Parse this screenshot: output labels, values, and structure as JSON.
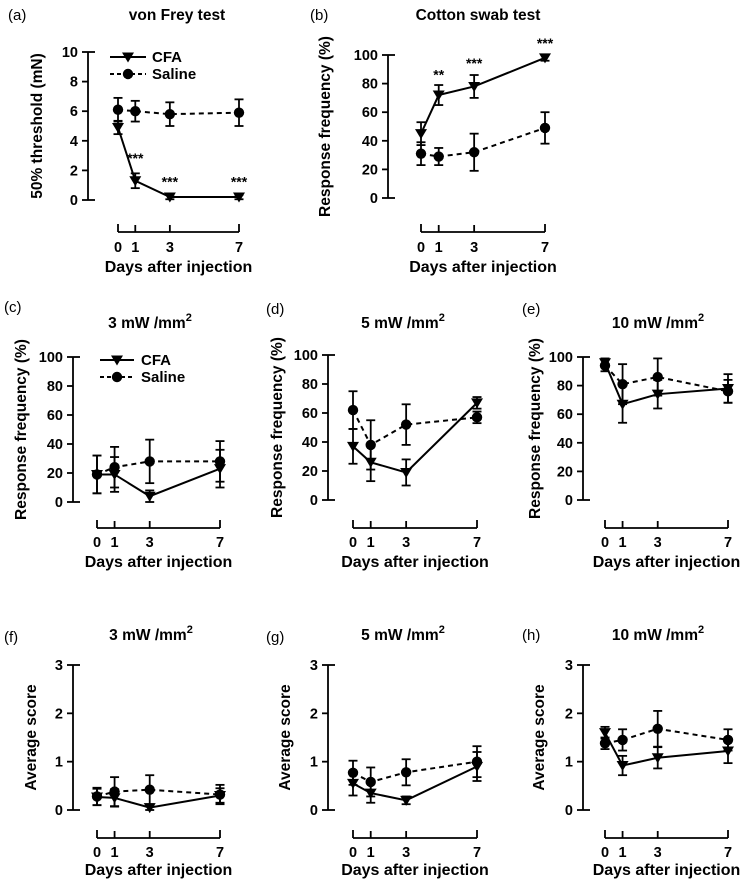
{
  "figure": {
    "background": "#ffffff",
    "foreground": "#000000",
    "xlabel": "Days after injection",
    "x_tick_labels": [
      "0",
      "1",
      "3",
      "7"
    ],
    "legend": {
      "cfa_label": "CFA",
      "saline_label": "Saline"
    }
  },
  "chart_data": [
    {
      "id": "a",
      "type": "line",
      "panel_label": "(a)",
      "title": "von Frey test",
      "title_sup": "",
      "ylabel": "50% threshold (mN)",
      "xlabel": "Days after injection",
      "x": [
        0,
        1,
        3,
        7
      ],
      "ylim": [
        0,
        10
      ],
      "yticks": [
        0,
        2,
        4,
        6,
        8,
        10
      ],
      "legend": true,
      "series": [
        {
          "name": "Saline",
          "marker": "circle",
          "line": "dashed",
          "values": [
            6.1,
            6.0,
            5.8,
            5.9
          ],
          "errors": [
            0.8,
            0.7,
            0.8,
            0.9
          ]
        },
        {
          "name": "CFA",
          "marker": "triangle-down",
          "line": "solid",
          "values": [
            4.9,
            1.3,
            0.2,
            0.2
          ],
          "errors": [
            0.45,
            0.5,
            0.15,
            0.15
          ]
        }
      ],
      "annotations": [
        {
          "text": "***",
          "day": 1,
          "value": 2.5
        },
        {
          "text": "***",
          "day": 3,
          "value": 0.9
        },
        {
          "text": "***",
          "day": 7,
          "value": 0.9
        }
      ]
    },
    {
      "id": "b",
      "type": "line",
      "panel_label": "(b)",
      "title": "Cotton swab test",
      "title_sup": "",
      "ylabel": "Response frequency (%)",
      "xlabel": "Days after injection",
      "x": [
        0,
        1,
        3,
        7
      ],
      "ylim": [
        0,
        100
      ],
      "yticks": [
        0,
        20,
        40,
        60,
        80,
        100
      ],
      "legend": false,
      "series": [
        {
          "name": "Saline",
          "marker": "circle",
          "line": "dashed",
          "values": [
            31,
            29,
            32,
            49
          ],
          "errors": [
            8,
            6,
            13,
            11
          ]
        },
        {
          "name": "CFA",
          "marker": "triangle-down",
          "line": "solid",
          "values": [
            45,
            72,
            78,
            98
          ],
          "errors": [
            8,
            7,
            8,
            2
          ]
        }
      ],
      "annotations": [
        {
          "text": "**",
          "day": 1,
          "value": 83
        },
        {
          "text": "***",
          "day": 3,
          "value": 91
        },
        {
          "text": "***",
          "day": 7,
          "value": 105
        }
      ]
    },
    {
      "id": "c",
      "type": "line",
      "panel_label": "(c)",
      "title": "3 mW /mm",
      "title_sup": "2",
      "ylabel": "Response frequency (%)",
      "xlabel": "Days after injection",
      "x": [
        0,
        1,
        3,
        7
      ],
      "ylim": [
        0,
        100
      ],
      "yticks": [
        0,
        20,
        40,
        60,
        80,
        100
      ],
      "legend": true,
      "series": [
        {
          "name": "Saline",
          "marker": "circle",
          "line": "dashed",
          "values": [
            19,
            24,
            28,
            28
          ],
          "errors": [
            13,
            14,
            15,
            14
          ]
        },
        {
          "name": "CFA",
          "marker": "triangle-down",
          "line": "solid",
          "values": [
            19,
            19,
            4,
            23
          ],
          "errors": [
            13,
            12,
            4,
            13
          ]
        }
      ],
      "annotations": []
    },
    {
      "id": "d",
      "type": "line",
      "panel_label": "(d)",
      "title": "5 mW /mm",
      "title_sup": "2",
      "ylabel": "Response frequency (%)",
      "xlabel": "Days after injection",
      "x": [
        0,
        1,
        3,
        7
      ],
      "ylim": [
        0,
        100
      ],
      "yticks": [
        0,
        20,
        40,
        60,
        80,
        100
      ],
      "legend": false,
      "series": [
        {
          "name": "Saline",
          "marker": "circle",
          "line": "dashed",
          "values": [
            62,
            38,
            52,
            57
          ],
          "errors": [
            13,
            17,
            14,
            4
          ]
        },
        {
          "name": "CFA",
          "marker": "triangle-down",
          "line": "solid",
          "values": [
            37,
            26,
            19,
            67
          ],
          "errors": [
            12,
            13,
            9,
            4
          ]
        }
      ],
      "annotations": []
    },
    {
      "id": "e",
      "type": "line",
      "panel_label": "(e)",
      "title": "10 mW /mm",
      "title_sup": "2",
      "ylabel": "Response frequency (%)",
      "xlabel": "Days after injection",
      "x": [
        0,
        1,
        3,
        7
      ],
      "ylim": [
        0,
        100
      ],
      "yticks": [
        0,
        20,
        40,
        60,
        80,
        100
      ],
      "legend": false,
      "series": [
        {
          "name": "Saline",
          "marker": "circle",
          "line": "dashed",
          "values": [
            94,
            81,
            86,
            76
          ],
          "errors": [
            4,
            14,
            13,
            8
          ]
        },
        {
          "name": "CFA",
          "marker": "triangle-down",
          "line": "solid",
          "values": [
            96,
            67,
            74,
            78
          ],
          "errors": [
            3,
            13,
            10,
            10
          ]
        }
      ],
      "annotations": []
    },
    {
      "id": "f",
      "type": "line",
      "panel_label": "(f)",
      "title": "3 mW /mm",
      "title_sup": "2",
      "ylabel": "Average score",
      "xlabel": "Days after injection",
      "x": [
        0,
        1,
        3,
        7
      ],
      "ylim": [
        0,
        3
      ],
      "yticks": [
        0,
        1,
        2,
        3
      ],
      "legend": false,
      "series": [
        {
          "name": "Saline",
          "marker": "circle",
          "line": "dashed",
          "values": [
            0.28,
            0.38,
            0.42,
            0.32
          ],
          "errors": [
            0.18,
            0.3,
            0.3,
            0.2
          ]
        },
        {
          "name": "CFA",
          "marker": "triangle-down",
          "line": "solid",
          "values": [
            0.27,
            0.25,
            0.05,
            0.3
          ],
          "errors": [
            0.17,
            0.18,
            0.05,
            0.15
          ]
        }
      ],
      "annotations": []
    },
    {
      "id": "g",
      "type": "line",
      "panel_label": "(g)",
      "title": "5 mW /mm",
      "title_sup": "2",
      "ylabel": "Average score",
      "xlabel": "Days after injection",
      "x": [
        0,
        1,
        3,
        7
      ],
      "ylim": [
        0,
        3
      ],
      "yticks": [
        0,
        1,
        2,
        3
      ],
      "legend": false,
      "series": [
        {
          "name": "Saline",
          "marker": "circle",
          "line": "dashed",
          "values": [
            0.77,
            0.58,
            0.78,
            1.0
          ],
          "errors": [
            0.25,
            0.3,
            0.27,
            0.32
          ]
        },
        {
          "name": "CFA",
          "marker": "triangle-down",
          "line": "solid",
          "values": [
            0.55,
            0.35,
            0.2,
            0.9
          ],
          "errors": [
            0.25,
            0.2,
            0.08,
            0.3
          ]
        }
      ],
      "annotations": []
    },
    {
      "id": "h",
      "type": "line",
      "panel_label": "(h)",
      "title": "10 mW /mm",
      "title_sup": "2",
      "ylabel": "Average score",
      "xlabel": "Days after injection",
      "x": [
        0,
        1,
        3,
        7
      ],
      "ylim": [
        0,
        3
      ],
      "yticks": [
        0,
        1,
        2,
        3
      ],
      "legend": false,
      "series": [
        {
          "name": "Saline",
          "marker": "circle",
          "line": "dashed",
          "values": [
            1.38,
            1.45,
            1.68,
            1.45
          ],
          "errors": [
            0.12,
            0.22,
            0.37,
            0.22
          ]
        },
        {
          "name": "CFA",
          "marker": "triangle-down",
          "line": "solid",
          "values": [
            1.6,
            0.92,
            1.08,
            1.22
          ],
          "errors": [
            0.12,
            0.2,
            0.22,
            0.25
          ]
        }
      ],
      "annotations": []
    }
  ]
}
